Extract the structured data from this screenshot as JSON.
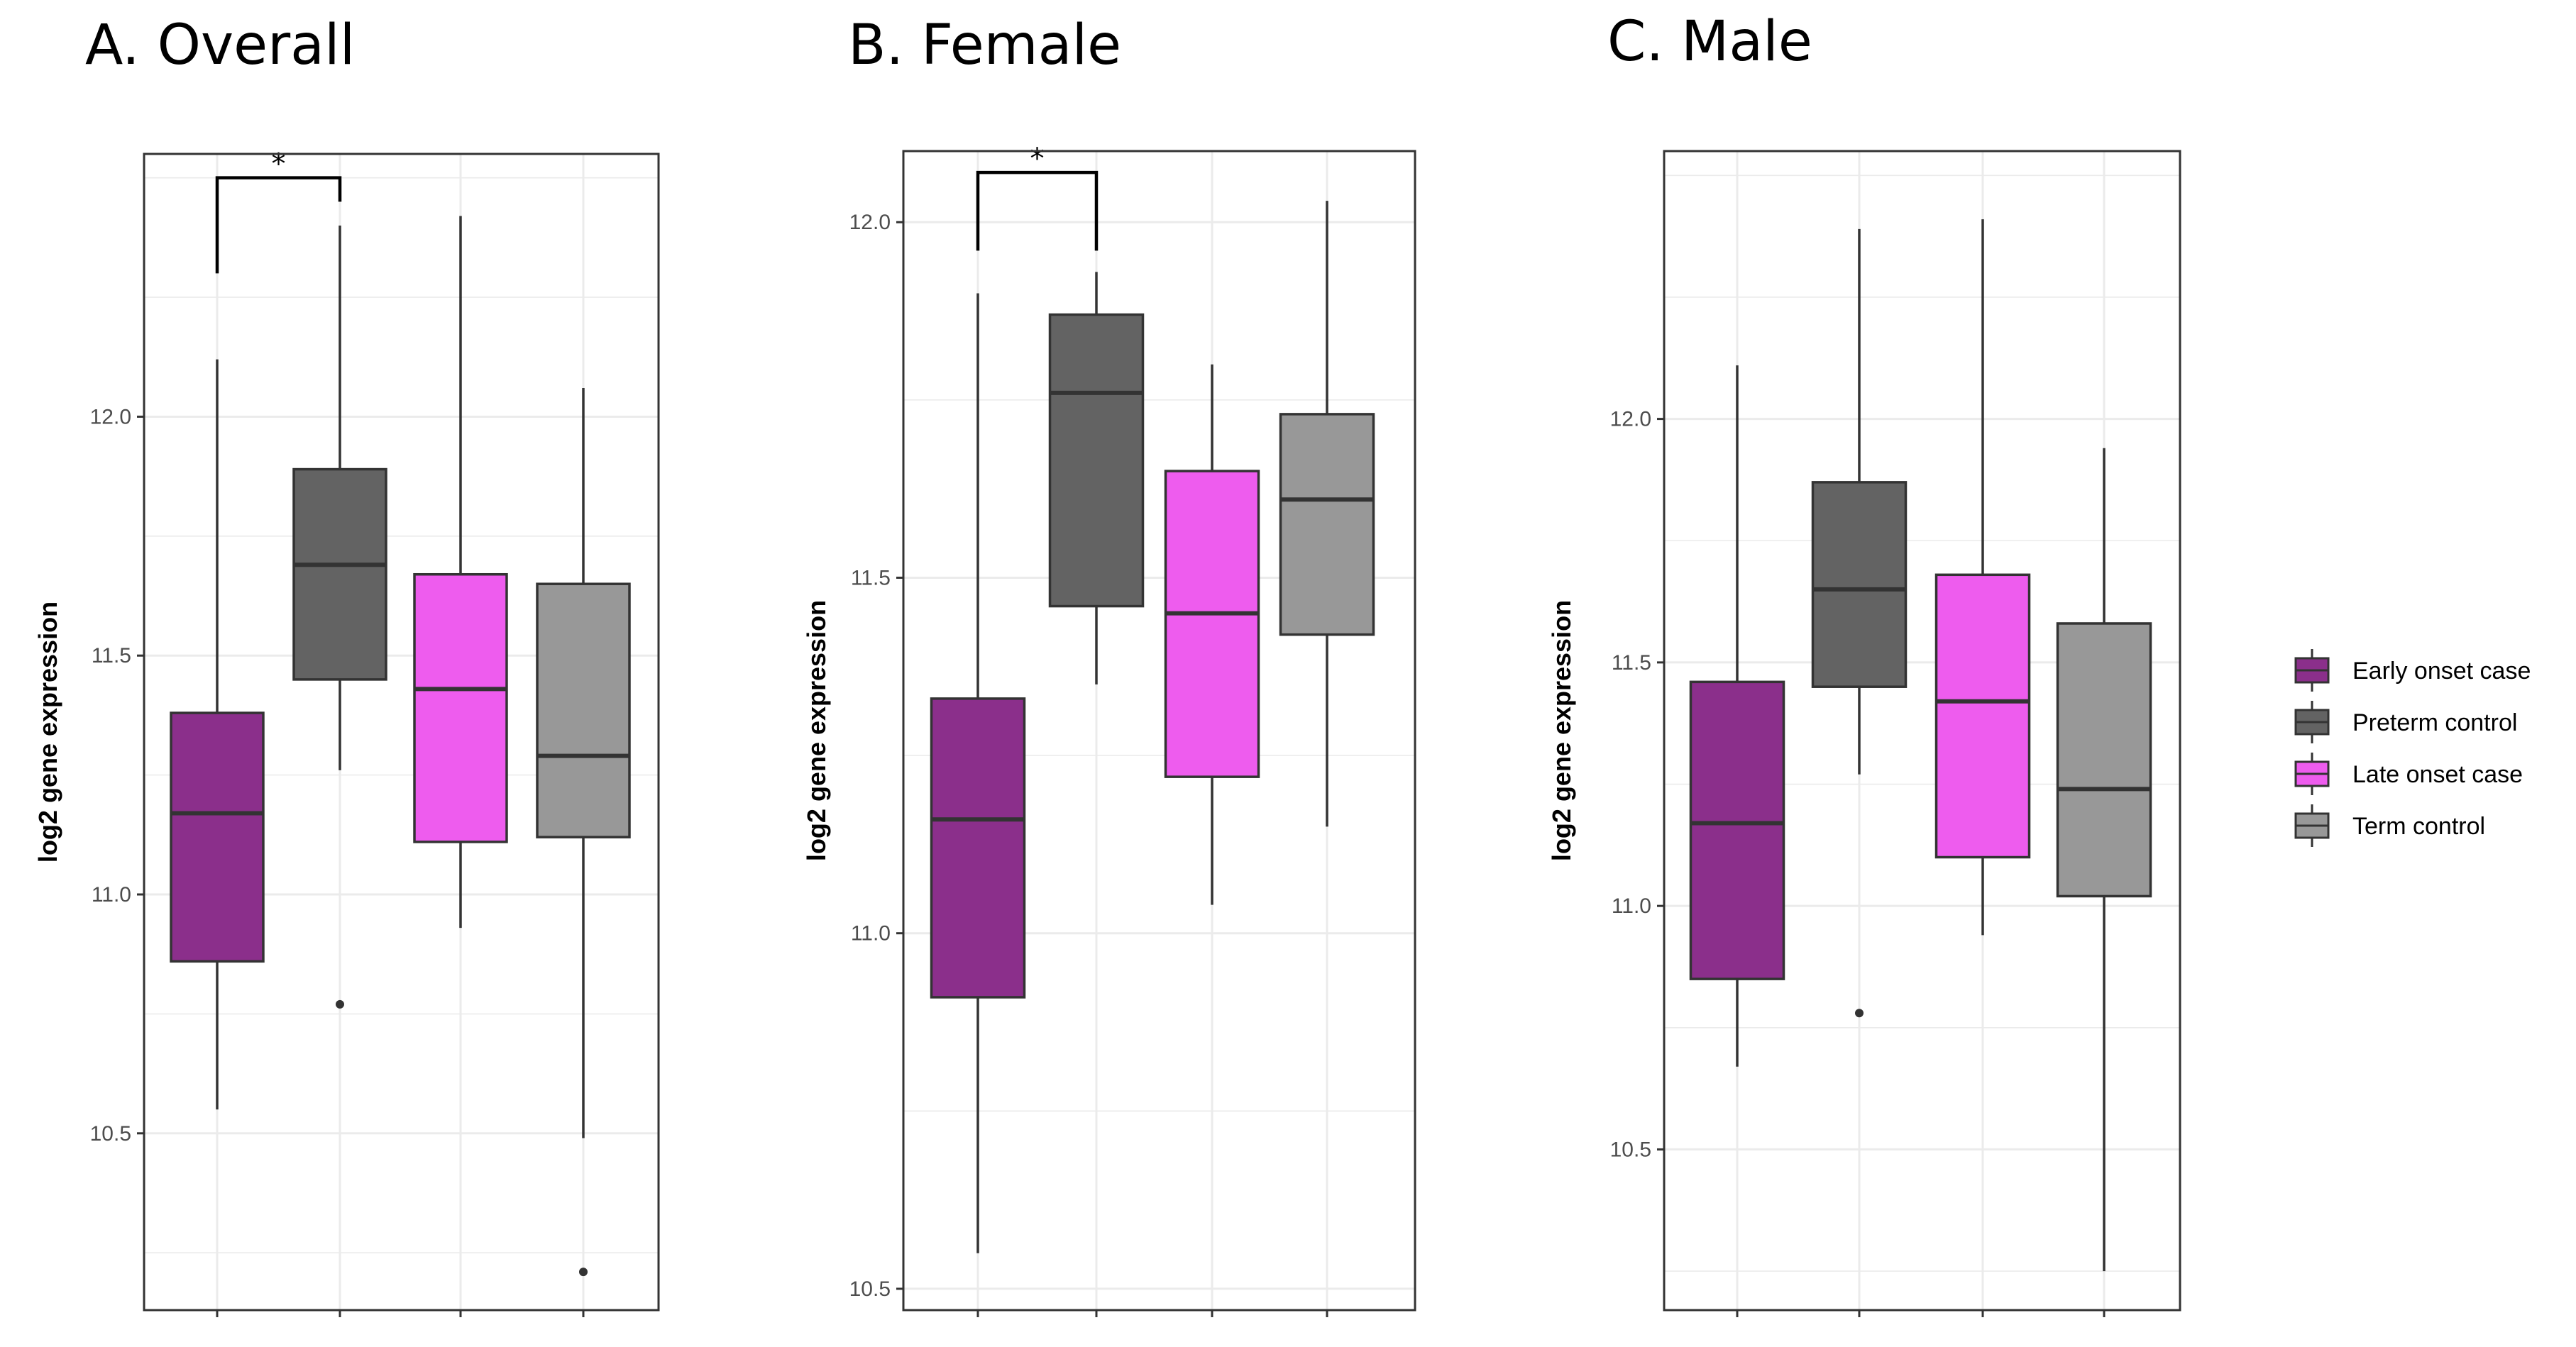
{
  "chart_data": [
    {
      "type": "boxplot",
      "title": "A. Overall",
      "ylabel": "log2 gene expression",
      "xlabel": "",
      "ylim": [
        10.13,
        12.55
      ],
      "yticks": [
        10.5,
        11.0,
        11.5,
        12.0
      ],
      "ytick_labels": [
        "10.5",
        "11.0",
        "11.5",
        "12.0"
      ],
      "grid": true,
      "significance": [
        {
          "from": 0,
          "to": 1,
          "label": "*",
          "y": 12.5,
          "drop_to": [
            12.3,
            12.45
          ]
        }
      ],
      "boxes": [
        {
          "group": "Early onset case",
          "min": 10.55,
          "q1": 10.86,
          "median": 11.17,
          "q3": 11.38,
          "max": 12.12,
          "outliers": []
        },
        {
          "group": "Preterm control",
          "min": 11.26,
          "q1": 11.45,
          "median": 11.69,
          "q3": 11.89,
          "max": 12.4,
          "outliers": [
            10.77
          ]
        },
        {
          "group": "Late onset case",
          "min": 10.93,
          "q1": 11.11,
          "median": 11.43,
          "q3": 11.67,
          "max": 12.42,
          "outliers": []
        },
        {
          "group": "Term control",
          "min": 10.49,
          "q1": 11.12,
          "median": 11.29,
          "q3": 11.65,
          "max": 12.06,
          "outliers": [
            10.21
          ]
        }
      ]
    },
    {
      "type": "boxplot",
      "title": "B. Female",
      "ylabel": "log2 gene expression",
      "xlabel": "",
      "ylim": [
        10.47,
        12.1
      ],
      "yticks": [
        10.5,
        11.0,
        11.5,
        12.0
      ],
      "ytick_labels": [
        "10.5",
        "11.0",
        "11.5",
        "12.0"
      ],
      "grid": true,
      "significance": [
        {
          "from": 0,
          "to": 1,
          "label": "*",
          "y": 12.07,
          "drop_to": [
            11.96,
            11.96
          ]
        }
      ],
      "boxes": [
        {
          "group": "Early onset case",
          "min": 10.55,
          "q1": 10.91,
          "median": 11.16,
          "q3": 11.33,
          "max": 11.9,
          "outliers": []
        },
        {
          "group": "Preterm control",
          "min": 11.35,
          "q1": 11.46,
          "median": 11.76,
          "q3": 11.87,
          "max": 11.93,
          "outliers": []
        },
        {
          "group": "Late onset case",
          "min": 11.04,
          "q1": 11.22,
          "median": 11.45,
          "q3": 11.65,
          "max": 11.8,
          "outliers": []
        },
        {
          "group": "Term control",
          "min": 11.15,
          "q1": 11.42,
          "median": 11.61,
          "q3": 11.73,
          "max": 12.03,
          "outliers": []
        }
      ]
    },
    {
      "type": "boxplot",
      "title": "C. Male",
      "ylabel": "log2 gene expression",
      "xlabel": "",
      "ylim": [
        10.17,
        12.55
      ],
      "yticks": [
        10.5,
        11.0,
        11.5,
        12.0
      ],
      "ytick_labels": [
        "10.5",
        "11.0",
        "11.5",
        "12.0"
      ],
      "grid": true,
      "significance": [],
      "boxes": [
        {
          "group": "Early onset case",
          "min": 10.67,
          "q1": 10.85,
          "median": 11.17,
          "q3": 11.46,
          "max": 12.11,
          "outliers": []
        },
        {
          "group": "Preterm control",
          "min": 11.27,
          "q1": 11.45,
          "median": 11.65,
          "q3": 11.87,
          "max": 12.39,
          "outliers": [
            10.78
          ]
        },
        {
          "group": "Late onset case",
          "min": 10.94,
          "q1": 11.1,
          "median": 11.42,
          "q3": 11.68,
          "max": 12.41,
          "outliers": []
        },
        {
          "group": "Term control",
          "min": 10.25,
          "q1": 11.02,
          "median": 11.24,
          "q3": 11.58,
          "max": 11.94,
          "outliers": []
        }
      ]
    }
  ],
  "legend": {
    "items": [
      {
        "label": "Early onset case",
        "color": "#8b2f8b"
      },
      {
        "label": "Preterm control",
        "color": "#636363"
      },
      {
        "label": "Late onset case",
        "color": "#ee5cee"
      },
      {
        "label": "Term control",
        "color": "#989898"
      }
    ]
  },
  "colors": {
    "box_border": "#333333",
    "grid": "#ebebeb",
    "panel_border": "#333333"
  }
}
